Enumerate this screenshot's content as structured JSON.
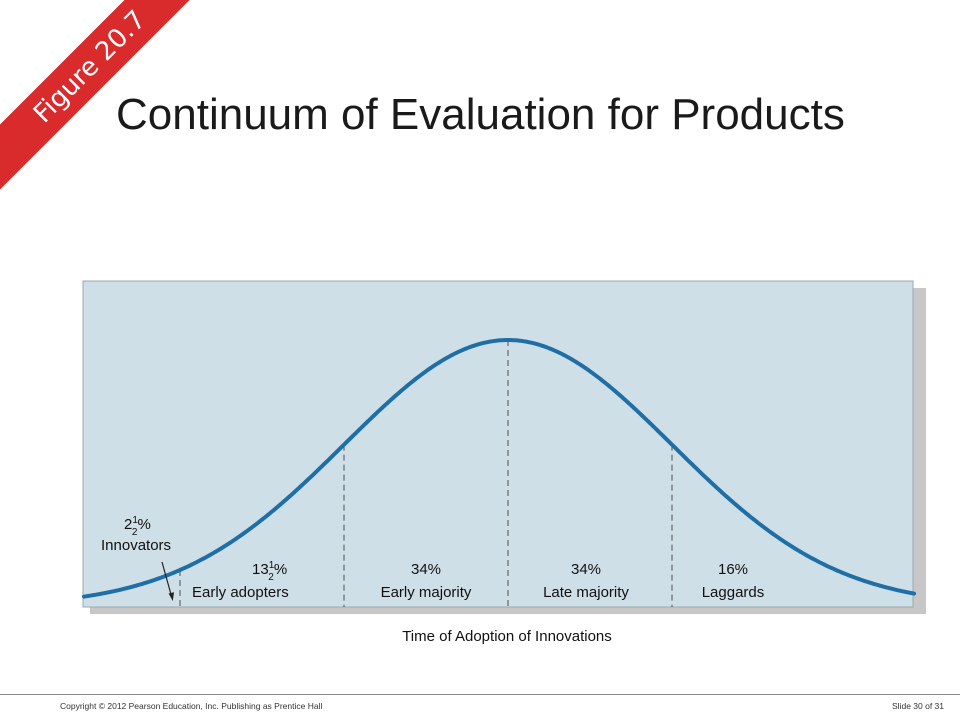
{
  "slide": {
    "figure_tag": "Figure 20.7",
    "title": "Continuum of Evaluation for Products",
    "colors": {
      "banner": "#d92b2b",
      "plot_bg": "#cfdfe8",
      "curve": "#1f6fa6"
    }
  },
  "chart_data": {
    "type": "area",
    "xlabel": "Time of Adoption of Innovations",
    "segments": [
      {
        "pct_whole": "2",
        "pct_frac_num": "1",
        "pct_frac_den": "2",
        "pct_suffix": "%",
        "name": "Innovators",
        "share": 2.5
      },
      {
        "pct_whole": "13",
        "pct_frac_num": "1",
        "pct_frac_den": "2",
        "pct_suffix": "%",
        "name": "Early adopters",
        "share": 13.5
      },
      {
        "pct_whole": "34%",
        "pct_frac_num": "",
        "pct_frac_den": "",
        "pct_suffix": "",
        "name": "Early majority",
        "share": 34
      },
      {
        "pct_whole": "34%",
        "pct_frac_num": "",
        "pct_frac_den": "",
        "pct_suffix": "",
        "name": "Late majority",
        "share": 34
      },
      {
        "pct_whole": "16%",
        "pct_frac_num": "",
        "pct_frac_den": "",
        "pct_suffix": "",
        "name": "Laggards",
        "share": 16
      }
    ]
  },
  "footer": {
    "copyright": "Copyright © 2012 Pearson Education, Inc. Publishing as Prentice Hall",
    "slide_number": "Slide 30 of 31"
  }
}
